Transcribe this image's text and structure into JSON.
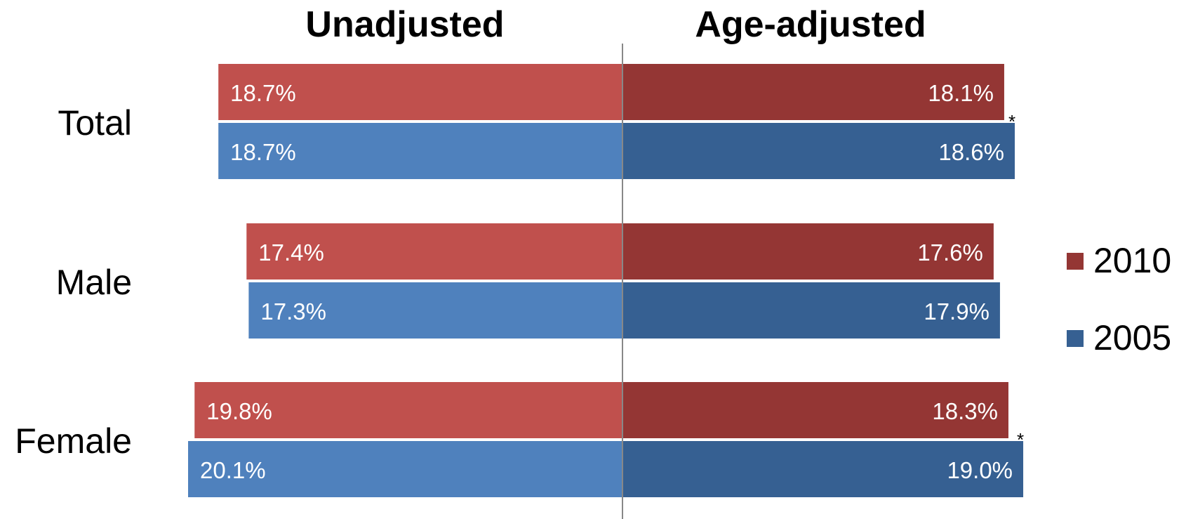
{
  "chart_data": {
    "type": "bar",
    "orientation": "horizontal",
    "layout": "back-to-back",
    "panels": [
      {
        "key": "unadjusted",
        "title": "Unadjusted"
      },
      {
        "key": "age_adjusted",
        "title": "Age-adjusted"
      }
    ],
    "categories": [
      "Total",
      "Male",
      "Female"
    ],
    "series": [
      {
        "name": "2010",
        "color": "#C0504D",
        "color_adjusted": "#943634",
        "unadjusted": [
          18.7,
          17.4,
          19.8
        ],
        "age_adjusted": [
          18.1,
          17.6,
          18.3
        ],
        "unadjusted_labels": [
          "18.7%",
          "17.4%",
          "19.8%"
        ],
        "age_adjusted_labels": [
          "18.1%",
          "17.6%",
          "18.3%"
        ]
      },
      {
        "name": "2005",
        "color": "#4F81BD",
        "color_adjusted": "#366092",
        "unadjusted": [
          18.7,
          17.3,
          20.1
        ],
        "age_adjusted": [
          18.6,
          17.9,
          19.0
        ],
        "unadjusted_labels": [
          "18.7%",
          "17.3%",
          "20.1%"
        ],
        "age_adjusted_labels": [
          "18.6%",
          "17.9%",
          "19.0%"
        ]
      }
    ],
    "annotations": [
      {
        "text": "*",
        "category": "Total",
        "panel": "age_adjusted"
      },
      {
        "text": "*",
        "category": "Female",
        "panel": "age_adjusted"
      }
    ],
    "units": "%",
    "legend": {
      "position": "right",
      "entries": [
        "2010",
        "2005"
      ]
    },
    "grid": false,
    "xlim": [
      0,
      20.1
    ]
  }
}
